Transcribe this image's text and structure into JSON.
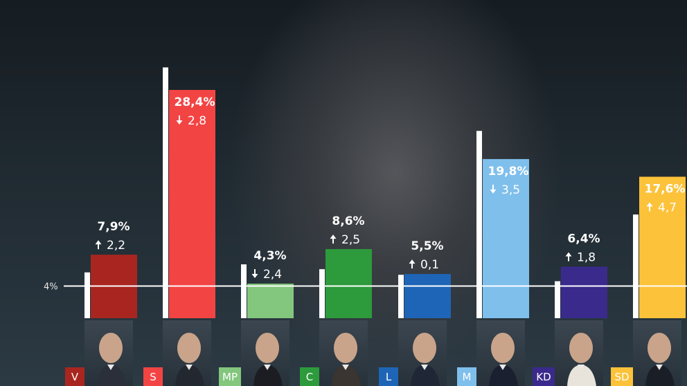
{
  "chart_data": {
    "type": "bar",
    "threshold": {
      "label": "4%",
      "value": 4
    },
    "y_max": 31,
    "categories": [
      "V",
      "S",
      "MP",
      "C",
      "L",
      "M",
      "KD",
      "SD"
    ],
    "previous_values": [
      5.7,
      31.2,
      6.7,
      6.1,
      5.4,
      23.3,
      4.6,
      12.9
    ],
    "series": [
      {
        "values": [
          7.9,
          28.4,
          4.3,
          8.6,
          5.5,
          19.8,
          6.4,
          17.6
        ],
        "labels": [
          "7,9%",
          "28,4%",
          "4,3%",
          "8,6%",
          "5,5%",
          "19,8%",
          "6,4%",
          "17,6%"
        ],
        "change_direction": [
          "up",
          "down",
          "down",
          "up",
          "up",
          "down",
          "up",
          "up"
        ],
        "change_labels": [
          "2,2",
          "2,8",
          "2,4",
          "2,5",
          "0,1",
          "3,5",
          "1,8",
          "4,7"
        ],
        "colors": [
          "#a8261f",
          "#f34444",
          "#83c67d",
          "#2d9a3c",
          "#1e65b7",
          "#7fbfec",
          "#3a2a8c",
          "#fcc23a"
        ]
      }
    ]
  },
  "parties": [
    {
      "abbr": "V",
      "color": "#a8261f",
      "suit": "#2a2f3a"
    },
    {
      "abbr": "S",
      "color": "#f34444",
      "suit": "#232830"
    },
    {
      "abbr": "MP",
      "color": "#83c67d",
      "suit": "#1b1d22"
    },
    {
      "abbr": "C",
      "color": "#2d9a3c",
      "suit": "#3a3530"
    },
    {
      "abbr": "L",
      "color": "#1e65b7",
      "suit": "#1f2636"
    },
    {
      "abbr": "M",
      "color": "#7fbfec",
      "suit": "#1a2030"
    },
    {
      "abbr": "KD",
      "color": "#3a2a8c",
      "suit": "#e8e4dc"
    },
    {
      "abbr": "SD",
      "color": "#fcc23a",
      "suit": "#1a1e26"
    }
  ]
}
